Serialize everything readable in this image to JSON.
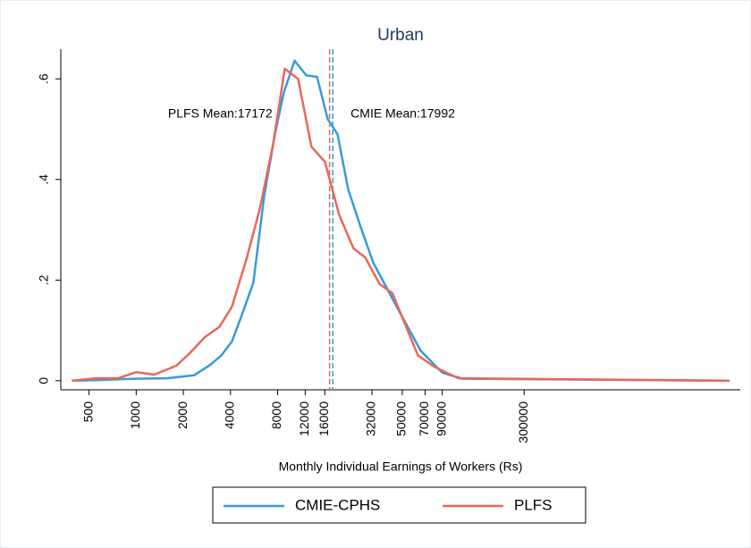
{
  "chart_data": {
    "type": "line",
    "title": "Urban",
    "x_label": "Monthly Individual Earnings of Workers (Rs)",
    "xscale": "log",
    "xlim": [
      330,
      7200000
    ],
    "xticks": [
      500,
      1000,
      2000,
      4000,
      8000,
      12000,
      16000,
      32000,
      50000,
      70000,
      90000,
      300000
    ],
    "ylim": [
      -0.018,
      0.659
    ],
    "yticks": [
      {
        "value": 0,
        "label": "0"
      },
      {
        "value": 0.2,
        "label": ".2"
      },
      {
        "value": 0.4,
        "label": ".4"
      },
      {
        "value": 0.6,
        "label": ".6"
      }
    ],
    "grid": false,
    "legend": "bottom",
    "series": [
      {
        "name": "CMIE-CPHS",
        "color": "#3a9ad9",
        "x": [
          390,
          550,
          1000,
          1580,
          2350,
          2980,
          3490,
          4085,
          4720,
          5600,
          6560,
          7690,
          8770,
          10270,
          12190,
          14280,
          16700,
          19300,
          22600,
          26800,
          32600,
          46500,
          65400,
          90000,
          121000,
          6150000
        ],
        "values": [
          0,
          0.001,
          0.004,
          0.005,
          0.011,
          0.032,
          0.05,
          0.078,
          0.13,
          0.195,
          0.366,
          0.49,
          0.573,
          0.636,
          0.607,
          0.604,
          0.52,
          0.49,
          0.38,
          0.31,
          0.235,
          0.145,
          0.06,
          0.016,
          0.004,
          0
        ]
      },
      {
        "name": "PLFS",
        "color": "#e8685a",
        "x": [
          388,
          553,
          768,
          1000,
          1302,
          1808,
          2203,
          2753,
          3400,
          4085,
          5040,
          6140,
          7490,
          8880,
          10800,
          13160,
          16050,
          19750,
          24400,
          29000,
          35900,
          43200,
          63000,
          79900,
          114000,
          6150000
        ],
        "values": [
          0,
          0.005,
          0.005,
          0.017,
          0.012,
          0.03,
          0.055,
          0.087,
          0.107,
          0.147,
          0.24,
          0.34,
          0.47,
          0.62,
          0.6,
          0.465,
          0.435,
          0.33,
          0.263,
          0.245,
          0.192,
          0.174,
          0.05,
          0.028,
          0.005,
          0
        ]
      }
    ],
    "mean_lines": [
      {
        "label": "PLFS Mean:17172",
        "value": 17172,
        "color": "#e8685a"
      },
      {
        "label": "CMIE Mean:17992",
        "value": 17992,
        "color": "#3a9ad9"
      }
    ]
  }
}
